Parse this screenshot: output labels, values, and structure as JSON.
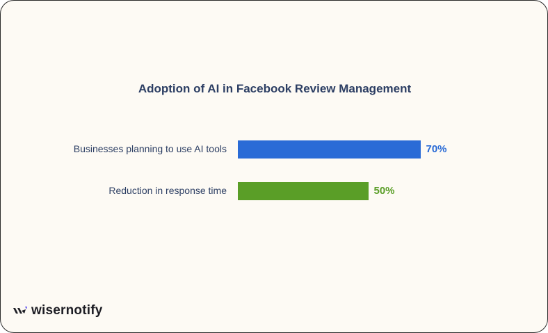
{
  "chart_data": {
    "type": "bar",
    "orientation": "horizontal",
    "title": "Adoption of AI in Facebook Review Management",
    "categories": [
      "Businesses planning to use AI tools",
      "Reduction in response time"
    ],
    "values": [
      70,
      50
    ],
    "value_labels": [
      "70%",
      "50%"
    ],
    "colors": [
      "#2a6bd6",
      "#5a9e27"
    ],
    "xlim": [
      0,
      100
    ],
    "grid": false,
    "xlabel": "",
    "ylabel": ""
  },
  "brand": {
    "name": "wisernotify",
    "accent": "#5b4ef0"
  }
}
